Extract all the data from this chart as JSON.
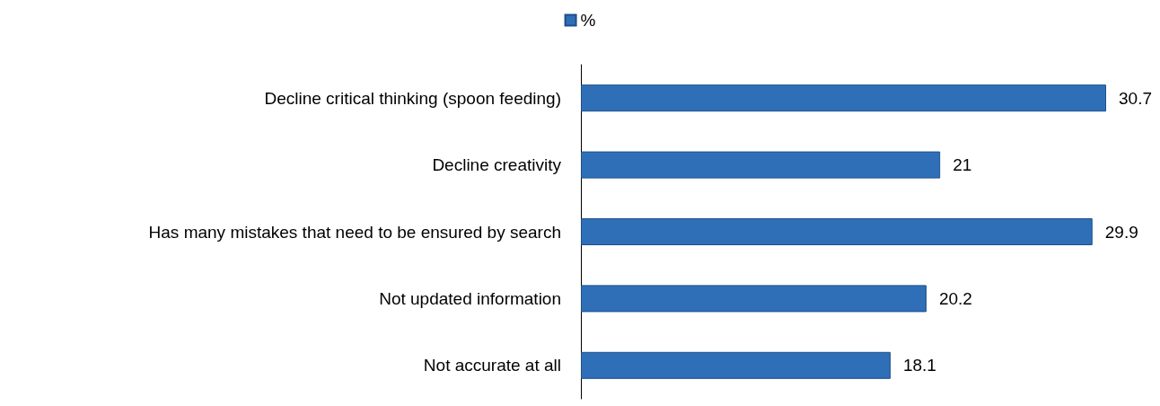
{
  "chart_data": {
    "type": "bar",
    "orientation": "horizontal",
    "categories": [
      "Decline critical thinking (spoon feeding)",
      "Decline creativity",
      "Has many mistakes that need to be ensured by search",
      "Not updated information",
      "Not accurate at all"
    ],
    "series": [
      {
        "name": "%",
        "color": "#2f6fb8",
        "values": [
          30.7,
          21,
          29.9,
          20.2,
          18.1
        ]
      }
    ],
    "data_labels": true,
    "legend": "top"
  }
}
